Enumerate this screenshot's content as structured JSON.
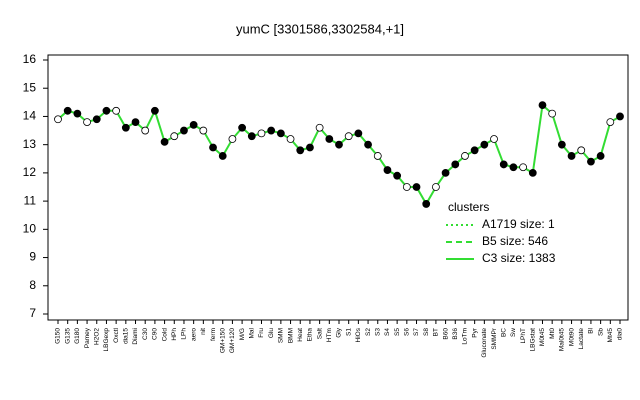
{
  "chart_data": {
    "type": "line",
    "title": "yumC [3301586,3302584,+1]",
    "categories": [
      "G150",
      "G135",
      "G180",
      "Pamey",
      "H2O2",
      "LBGexp",
      "Oxctl",
      "dia15",
      "Diami",
      "C30",
      "C90",
      "Cold",
      "HPh",
      "LPh",
      "aero",
      "nit",
      "ferm",
      "GM+150",
      "GM+120",
      "M/G",
      "Mal",
      "Fru",
      "Glu",
      "SMM",
      "BMM",
      "Heat",
      "Etha",
      "Salt",
      "HTm",
      "Gly",
      "S1",
      "HiOs",
      "S2",
      "S3",
      "S4",
      "S5",
      "S6",
      "S7",
      "S8",
      "BT",
      "B60",
      "B36",
      "LoTm",
      "Pyr",
      "Gluconate",
      "SMMPr",
      "BC",
      "Sw",
      "LPhT",
      "LBGstat",
      "M0t45",
      "Mt0",
      "Mal0t45",
      "M0t90",
      "Lactate",
      "Bl",
      "Sb",
      "Mt45",
      "dia0"
    ],
    "series": [
      {
        "name": "C3 size: 1383",
        "color": "#33dd33",
        "values": [
          13.9,
          14.2,
          14.1,
          13.8,
          13.9,
          14.2,
          14.2,
          13.6,
          13.8,
          13.5,
          14.2,
          13.1,
          13.3,
          13.5,
          13.7,
          13.5,
          12.9,
          12.6,
          13.2,
          13.6,
          13.3,
          13.4,
          13.5,
          13.4,
          13.2,
          12.8,
          12.9,
          13.6,
          13.2,
          13.0,
          13.3,
          13.4,
          13.0,
          12.6,
          12.1,
          11.9,
          11.5,
          11.5,
          10.9,
          11.5,
          12.0,
          12.3,
          12.6,
          12.8,
          13.0,
          13.2,
          12.3,
          12.2,
          12.2,
          12.0,
          14.4,
          14.1,
          13.0,
          12.6,
          12.8,
          12.4,
          12.6,
          13.8,
          14.0
        ]
      }
    ],
    "ylim": [
      7,
      16
    ],
    "yticks": [
      7,
      8,
      9,
      10,
      11,
      12,
      13,
      14,
      15,
      16
    ],
    "legend": {
      "title": "clusters",
      "items": [
        {
          "name": "A1719 size: 1",
          "dash": "dotted"
        },
        {
          "name": "B5 size: 546",
          "dash": "dashed"
        },
        {
          "name": "C3 size: 1383",
          "dash": "solid"
        }
      ]
    }
  }
}
